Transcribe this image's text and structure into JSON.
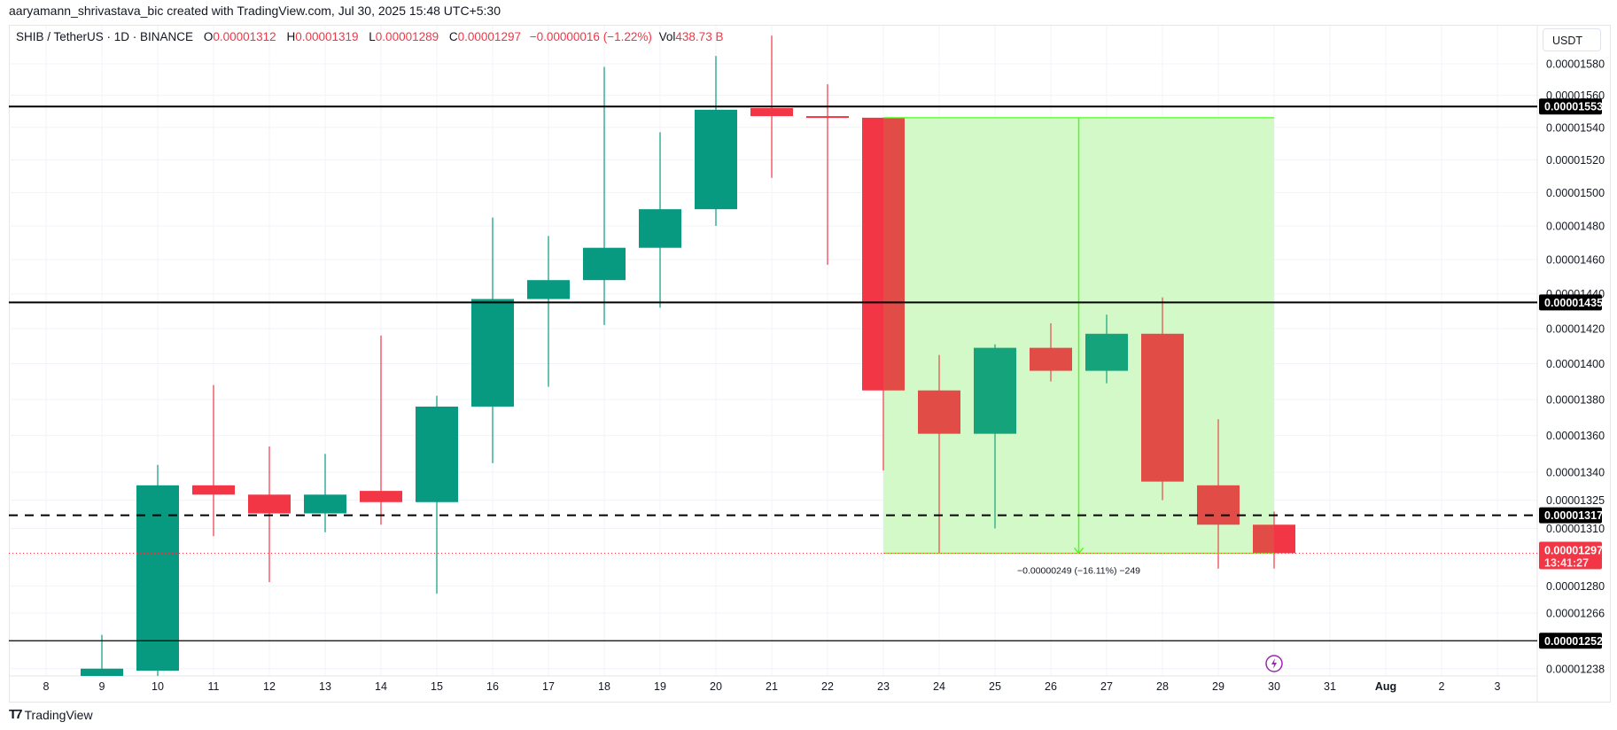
{
  "credit": "aaryamann_shrivastava_bic created with TradingView.com, Jul 30, 2025 15:48 UTC+5:30",
  "legend": {
    "symbol": "SHIB / TetherUS · 1D · BINANCE",
    "o_label": "O",
    "o": "0.00001312",
    "h_label": "H",
    "h": "0.00001319",
    "l_label": "L",
    "l": "0.00001289",
    "c_label": "C",
    "c": "0.00001297",
    "change": "−0.00000016 (−1.22%)",
    "vol_label": "Vol",
    "vol": "438.73 B"
  },
  "currency_button": "USDT",
  "logo_text": "TradingView",
  "colors": {
    "up": "#089981",
    "down": "#f23645",
    "measure_fill": "#e2fbda",
    "measure_line": "#4cff1a",
    "level": "#000000",
    "event_icon": "#9c27b0"
  },
  "chart_data": {
    "type": "candlestick",
    "y_scale": "log",
    "ylim": [
      1.232e-05,
      1.61e-05
    ],
    "x_tick_labels": [
      "8",
      "9",
      "10",
      "11",
      "12",
      "13",
      "14",
      "15",
      "16",
      "17",
      "18",
      "19",
      "20",
      "21",
      "22",
      "23",
      "24",
      "25",
      "26",
      "27",
      "28",
      "29",
      "30",
      "31",
      "Aug",
      "2",
      "3"
    ],
    "y_tick_labels": [
      "0.00001580",
      "0.00001560",
      "0.00001540",
      "0.00001520",
      "0.00001500",
      "0.00001480",
      "0.00001460",
      "0.00001440",
      "0.00001420",
      "0.00001400",
      "0.00001380",
      "0.00001360",
      "0.00001340",
      "0.00001325",
      "0.00001310",
      "0.00001280",
      "0.00001266",
      "0.00001238"
    ],
    "candles": [
      {
        "day": "9",
        "o": 1.234e-05,
        "h": 1.255e-05,
        "l": 1.23e-05,
        "c": 1.238e-05
      },
      {
        "day": "10",
        "o": 1.237e-05,
        "h": 1.344e-05,
        "l": 1.234e-05,
        "c": 1.333e-05
      },
      {
        "day": "11",
        "o": 1.333e-05,
        "h": 1.388e-05,
        "l": 1.306e-05,
        "c": 1.328e-05
      },
      {
        "day": "12",
        "o": 1.328e-05,
        "h": 1.354e-05,
        "l": 1.282e-05,
        "c": 1.318e-05
      },
      {
        "day": "13",
        "o": 1.318e-05,
        "h": 1.35e-05,
        "l": 1.308e-05,
        "c": 1.328e-05
      },
      {
        "day": "14",
        "o": 1.33e-05,
        "h": 1.416e-05,
        "l": 1.312e-05,
        "c": 1.324e-05
      },
      {
        "day": "15",
        "o": 1.324e-05,
        "h": 1.382e-05,
        "l": 1.276e-05,
        "c": 1.376e-05
      },
      {
        "day": "16",
        "o": 1.376e-05,
        "h": 1.485e-05,
        "l": 1.345e-05,
        "c": 1.437e-05
      },
      {
        "day": "17",
        "o": 1.437e-05,
        "h": 1.474e-05,
        "l": 1.387e-05,
        "c": 1.448e-05
      },
      {
        "day": "18",
        "o": 1.448e-05,
        "h": 1.578e-05,
        "l": 1.422e-05,
        "c": 1.467e-05
      },
      {
        "day": "19",
        "o": 1.467e-05,
        "h": 1.537e-05,
        "l": 1.432e-05,
        "c": 1.49e-05
      },
      {
        "day": "20",
        "o": 1.49e-05,
        "h": 1.585e-05,
        "l": 1.48e-05,
        "c": 1.551e-05
      },
      {
        "day": "21",
        "o": 1.552e-05,
        "h": 1.598e-05,
        "l": 1.509e-05,
        "c": 1.547e-05
      },
      {
        "day": "22",
        "o": 1.547e-05,
        "h": 1.567e-05,
        "l": 1.457e-05,
        "c": 1.546e-05
      },
      {
        "day": "23",
        "o": 1.546e-05,
        "h": 1.546e-05,
        "l": 1.341e-05,
        "c": 1.385e-05
      },
      {
        "day": "24",
        "o": 1.385e-05,
        "h": 1.405e-05,
        "l": 1.297e-05,
        "c": 1.361e-05
      },
      {
        "day": "25",
        "o": 1.361e-05,
        "h": 1.411e-05,
        "l": 1.31e-05,
        "c": 1.409e-05
      },
      {
        "day": "26",
        "o": 1.409e-05,
        "h": 1.423e-05,
        "l": 1.39e-05,
        "c": 1.396e-05
      },
      {
        "day": "27",
        "o": 1.396e-05,
        "h": 1.428e-05,
        "l": 1.389e-05,
        "c": 1.417e-05
      },
      {
        "day": "28",
        "o": 1.417e-05,
        "h": 1.438e-05,
        "l": 1.325e-05,
        "c": 1.335e-05
      },
      {
        "day": "29",
        "o": 1.333e-05,
        "h": 1.369e-05,
        "l": 1.289e-05,
        "c": 1.312e-05
      },
      {
        "day": "30",
        "o": 1.312e-05,
        "h": 1.319e-05,
        "l": 1.289e-05,
        "c": 1.297e-05
      }
    ],
    "levels": [
      {
        "price": 1.553e-05,
        "label": "0.00001553",
        "style": "solid"
      },
      {
        "price": 1.435e-05,
        "label": "0.00001435",
        "style": "solid"
      },
      {
        "price": 1.317e-05,
        "label": "0.00001317",
        "style": "dashed"
      },
      {
        "price": 1.252e-05,
        "label": "0.00001252",
        "style": "solid-thin"
      }
    ],
    "current_price": {
      "price": 1.297e-05,
      "label": "0.00001297",
      "countdown": "13:41:27"
    },
    "measure": {
      "from_day": "23",
      "to_day": "30",
      "from_price": 1.546e-05,
      "to_price": 1.297e-05,
      "label": "−0.00000249 (−16.11%) −249"
    },
    "event_marker_day": "30"
  }
}
